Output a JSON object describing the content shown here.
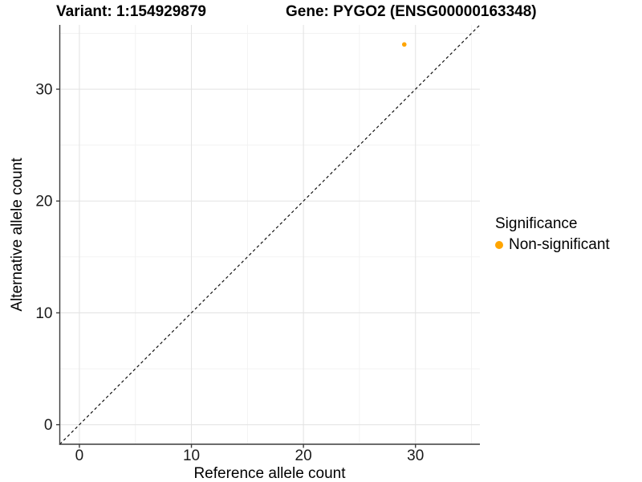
{
  "chart_data": {
    "type": "scatter",
    "title_left": "Variant: 1:154929879",
    "title_right": "Gene: PYGO2 (ENSG00000163348)",
    "xlabel": "Reference allele count",
    "ylabel": "Alternative allele count",
    "xlim": [
      -1.75,
      35.75
    ],
    "ylim": [
      -1.75,
      35.75
    ],
    "x_ticks": [
      0,
      10,
      20,
      30
    ],
    "y_ticks": [
      0,
      10,
      20,
      30
    ],
    "x_minor_ticks": [
      5,
      15,
      25,
      35
    ],
    "y_minor_ticks": [
      5,
      15,
      25,
      35
    ],
    "grid": true,
    "series": [
      {
        "name": "Non-significant",
        "color": "#FFA500",
        "points": [
          {
            "x": 29,
            "y": 34
          }
        ]
      }
    ],
    "reference_line": {
      "type": "identity",
      "style": "dashed",
      "color": "#111111",
      "from": {
        "x": -1.75,
        "y": -1.75
      },
      "to": {
        "x": 35.75,
        "y": 35.75
      }
    },
    "legend": {
      "title": "Significance",
      "position": "right",
      "items": [
        {
          "label": "Non-significant",
          "color": "#FFA500"
        }
      ]
    }
  },
  "colors": {
    "background": "#FFFFFF",
    "grid_major": "#E4E4E4",
    "grid_minor": "#F1F1F1",
    "axis_line": "#3C3C3C",
    "tick_text": "#1A1A1A",
    "title_text": "#000000"
  }
}
